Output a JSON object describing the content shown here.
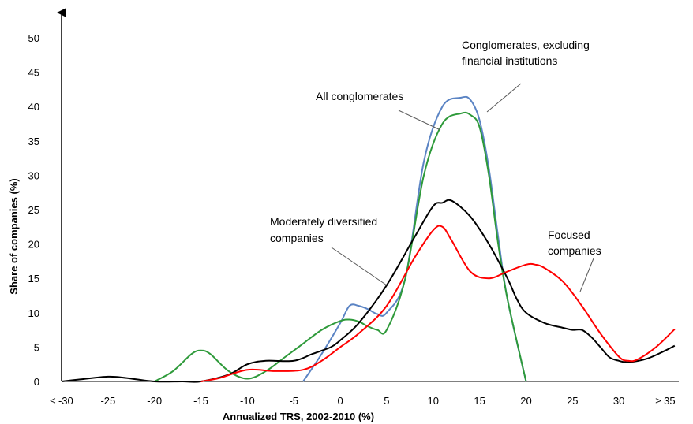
{
  "chart_data": {
    "type": "line",
    "xlabel": "Annualized TRS, 2002-2010 (%)",
    "ylabel": "Share of companies (%)",
    "xlim": [
      -30,
      37
    ],
    "ylim": [
      0,
      52
    ],
    "x_ticks": [
      -30,
      -25,
      -20,
      -15,
      -10,
      -5,
      0,
      5,
      10,
      15,
      20,
      25,
      30,
      35
    ],
    "x_tick_labels": [
      "≤ -30",
      "-25",
      "-20",
      "-15",
      "-10",
      "-5",
      "0",
      "5",
      "10",
      "15",
      "20",
      "25",
      "30",
      "≥ 35"
    ],
    "y_ticks": [
      0,
      5,
      10,
      15,
      20,
      25,
      30,
      35,
      40,
      45,
      50
    ],
    "y_tick_labels": [
      "0",
      "5",
      "10",
      "15",
      "20",
      "25",
      "30",
      "35",
      "40",
      "45",
      "50"
    ],
    "grid": false,
    "series": [
      {
        "color": "#5b84c4",
        "x": [
          -4,
          -2,
          0,
          1,
          2,
          3,
          4,
          5,
          7,
          9,
          11,
          13,
          14,
          15,
          16,
          17,
          18,
          20
        ],
        "y": [
          0,
          4,
          8.5,
          11,
          11,
          10.5,
          9.8,
          10,
          15,
          32,
          40,
          41.3,
          41,
          38,
          31,
          21,
          12,
          0
        ]
      },
      {
        "color": "#2e9a3a",
        "x": [
          -20,
          -18,
          -16,
          -15,
          -14,
          -12,
          -10,
          -8,
          -6,
          -4,
          -2,
          0,
          1,
          2,
          3,
          4,
          5,
          7,
          9,
          11,
          13,
          14,
          15,
          16,
          17,
          18,
          20
        ],
        "y": [
          0,
          1.5,
          4,
          4.5,
          4,
          1.5,
          0.4,
          1.5,
          3.5,
          5.5,
          7.5,
          8.8,
          9,
          8.7,
          8,
          7.5,
          7.5,
          15,
          30,
          37.5,
          39,
          38.8,
          37,
          30,
          20,
          12,
          0
        ]
      },
      {
        "color": "#000000",
        "x": [
          -30,
          -28,
          -25,
          -23,
          -20,
          -17,
          -15,
          -12,
          -10,
          -8,
          -5,
          -3,
          -1,
          0,
          2,
          5,
          8,
          10,
          11,
          12,
          14,
          16,
          18,
          19,
          20,
          22,
          24,
          25,
          26,
          27,
          28,
          29,
          30,
          31,
          33,
          35,
          36
        ],
        "y": [
          0,
          0.3,
          0.7,
          0.5,
          0,
          0,
          0,
          1,
          2.5,
          3,
          3,
          4,
          5,
          6,
          8.5,
          14,
          21,
          25.5,
          26,
          26.3,
          24,
          20,
          15,
          12,
          10,
          8.5,
          7.8,
          7.5,
          7.5,
          6.5,
          5,
          3.5,
          3,
          2.8,
          3.3,
          4.5,
          5.2
        ]
      },
      {
        "color": "#ff0000",
        "x": [
          -15,
          -13,
          -10,
          -7,
          -4,
          -2,
          0,
          2,
          5,
          8,
          10,
          11,
          12,
          14,
          16,
          18,
          20,
          21,
          22,
          24,
          26,
          28,
          30,
          31,
          32,
          34,
          36
        ],
        "y": [
          0,
          0.5,
          1.7,
          1.5,
          1.7,
          3,
          5,
          7,
          11,
          18,
          22,
          22.5,
          20.5,
          16,
          15,
          16,
          17,
          17,
          16.5,
          14.5,
          11,
          7,
          3.6,
          3,
          3.2,
          5,
          7.6
        ]
      }
    ],
    "annotations": [
      {
        "lines": [
          "Conglomerates, excluding",
          "financial institutions"
        ]
      },
      {
        "lines": [
          "All conglomerates"
        ]
      },
      {
        "lines": [
          "Moderately diversified",
          "companies"
        ]
      },
      {
        "lines": [
          "Focused",
          "companies"
        ]
      }
    ]
  }
}
